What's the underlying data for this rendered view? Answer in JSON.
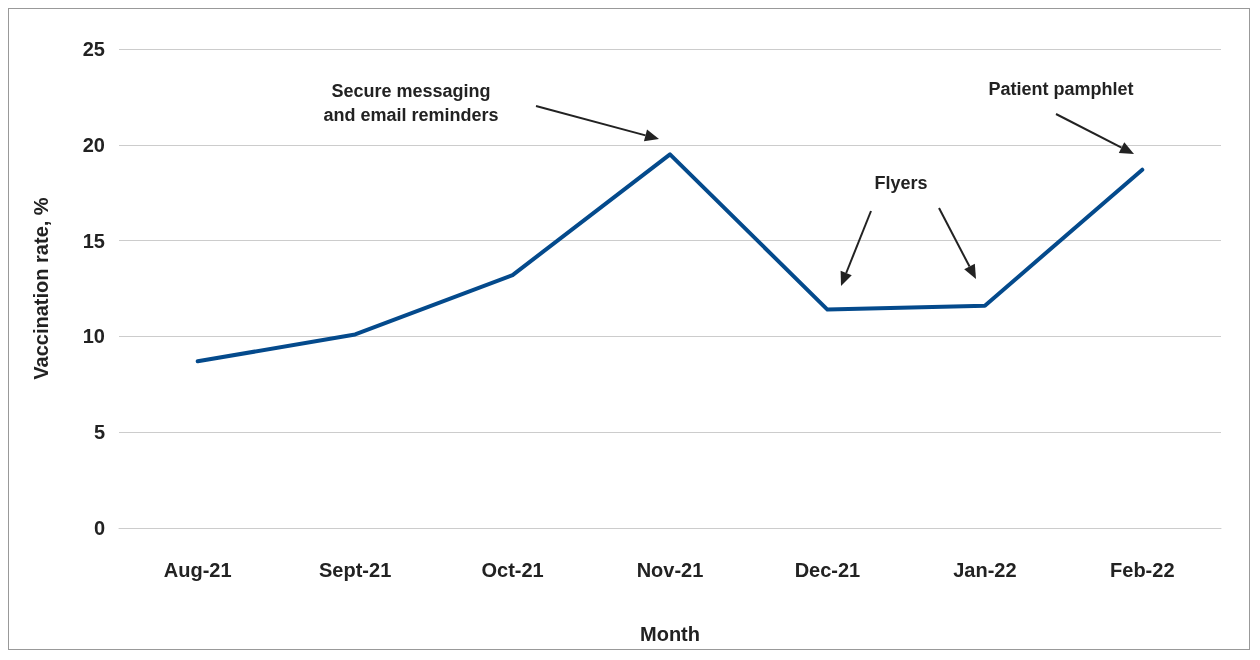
{
  "chart_data": {
    "type": "line",
    "xlabel": "Month",
    "ylabel": "Vaccination rate, %",
    "categories": [
      "Aug-21",
      "Sept-21",
      "Oct-21",
      "Nov-21",
      "Dec-21",
      "Jan-22",
      "Feb-22"
    ],
    "series": [
      {
        "color": "#044a8c",
        "values": [
          8.7,
          10.1,
          13.2,
          19.5,
          11.4,
          11.6,
          18.7
        ]
      }
    ],
    "ylim": [
      0,
      25
    ],
    "yticks": [
      0,
      5,
      10,
      15,
      20,
      25
    ],
    "grid": "y",
    "marker": "none",
    "line_style": "solid",
    "annotations": [
      "Secure messaging\nand email reminders",
      "Flyers",
      "Patient pamphlet"
    ]
  }
}
